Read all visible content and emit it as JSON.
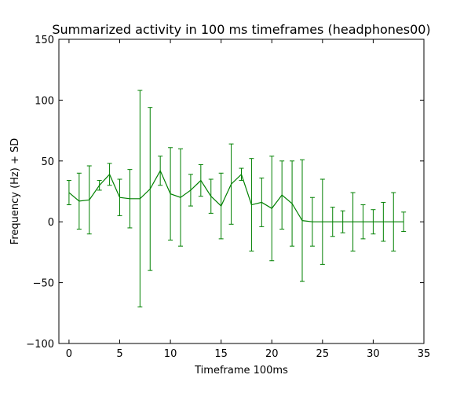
{
  "chart_data": {
    "type": "line",
    "title": "Summarized activity in 100 ms timeframes (headphones00)",
    "xlabel": "Timeframe 100ms",
    "ylabel": "Frequency (Hz) + SD",
    "xlim": [
      -1,
      35
    ],
    "ylim": [
      -100,
      150
    ],
    "xticks": [
      0,
      5,
      10,
      15,
      20,
      25,
      30,
      35
    ],
    "yticks": [
      -100,
      -50,
      0,
      50,
      100,
      150
    ],
    "grid": false,
    "series": [
      {
        "color": "#008000",
        "x": [
          0,
          1,
          2,
          3,
          4,
          5,
          6,
          7,
          8,
          9,
          10,
          11,
          12,
          13,
          14,
          15,
          16,
          17,
          18,
          19,
          20,
          21,
          22,
          23,
          24,
          25,
          26,
          27,
          28,
          29,
          30,
          31,
          32,
          33
        ],
        "y": [
          24,
          17,
          18,
          30,
          39,
          20,
          19,
          19,
          27,
          42,
          23,
          20,
          26,
          34,
          21,
          13,
          31,
          39,
          14,
          16,
          11,
          22,
          15,
          1,
          0,
          0,
          0,
          0,
          0,
          0,
          0,
          0,
          0,
          0
        ],
        "err": [
          10,
          23,
          28,
          4,
          9,
          15,
          24,
          89,
          67,
          12,
          38,
          40,
          13,
          13,
          14,
          27,
          33,
          5,
          38,
          20,
          43,
          28,
          35,
          50,
          20,
          35,
          12,
          9,
          24,
          14,
          10,
          16,
          24,
          8
        ]
      }
    ]
  }
}
